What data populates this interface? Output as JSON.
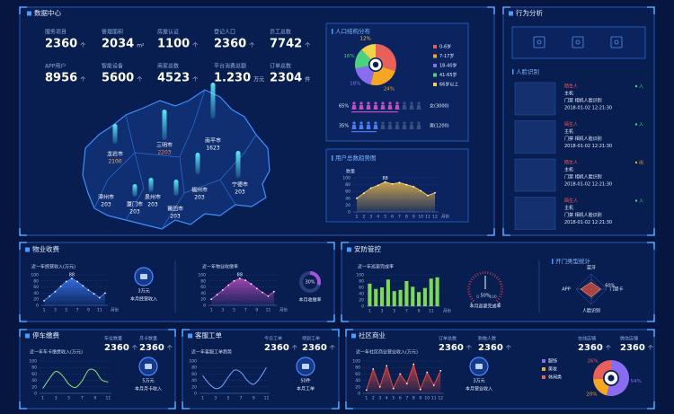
{
  "data_center": {
    "title": "数据中心",
    "stats": [
      {
        "label": "服务项目",
        "value": 2360,
        "unit": "个"
      },
      {
        "label": "管理面积",
        "value": 2034,
        "unit": "m²"
      },
      {
        "label": "房屋认证",
        "value": 1100,
        "unit": "个"
      },
      {
        "label": "登记人口",
        "value": 2360,
        "unit": "个"
      },
      {
        "label": "员工总数",
        "value": 7742,
        "unit": "个"
      },
      {
        "label": "APP用户",
        "value": 8956,
        "unit": "个"
      },
      {
        "label": "智能设备",
        "value": 5600,
        "unit": "个"
      },
      {
        "label": "商家总数",
        "value": 4523,
        "unit": "个"
      },
      {
        "label": "平台消费总额",
        "value": "1.230",
        "unit": "万元"
      },
      {
        "label": "订单总数",
        "value": 2304,
        "unit": "件"
      }
    ],
    "map": {
      "regions": [
        {
          "name": "龙岩市",
          "value": 2100,
          "color": "#ffb347"
        },
        {
          "name": "三明市",
          "value": 2203,
          "color": "#ff8a3d"
        },
        {
          "name": "南平市",
          "value": 1623,
          "color": "#ffffff"
        },
        {
          "name": "漳州市",
          "value": 203,
          "color": "#ffffff"
        },
        {
          "name": "厦门市",
          "value": 203,
          "color": "#ffffff"
        },
        {
          "name": "泉州市",
          "value": 203,
          "color": "#ffffff"
        },
        {
          "name": "莆田市",
          "value": 203,
          "color": "#ffffff"
        },
        {
          "name": "福州市",
          "value": 203,
          "color": "#ffffff"
        },
        {
          "name": "宁德市",
          "value": 203,
          "color": "#ffffff"
        }
      ]
    },
    "population": {
      "title": "人口结构分布",
      "chart_data": {
        "type": "pie",
        "categories": [
          "0-6岁",
          "7-17岁",
          "18-40岁",
          "41-65岁",
          "66岁以上"
        ],
        "values": [
          30,
          24,
          18,
          16,
          12
        ],
        "value_labels": [
          null,
          "24%",
          "18%",
          "16%",
          "12%"
        ],
        "colors": [
          "#e8605a",
          "#f5a623",
          "#8a6cf0",
          "#4cd27f",
          "#f2d14b"
        ]
      },
      "gender": [
        {
          "value": 65,
          "value_label": "65%",
          "label": "女(3000)",
          "color": "#c04fc4"
        },
        {
          "value": 35,
          "value_label": "35%",
          "label": "男(1200)",
          "color": "#4a7cf0"
        }
      ]
    },
    "users": {
      "title": "用户总数趋势图",
      "chart_data": {
        "type": "area",
        "y_label": "数量",
        "x_label": "月份",
        "categories": [
          "1",
          "2",
          "3",
          "4",
          "5",
          "6",
          "7",
          "8",
          "9",
          "10",
          "11",
          "12"
        ],
        "values": [
          40,
          55,
          70,
          78,
          88,
          82,
          86,
          80,
          74,
          62,
          48,
          56
        ],
        "value_labels": [
          null,
          null,
          null,
          null,
          "88",
          null,
          null,
          null,
          null,
          null,
          null,
          null
        ],
        "ylim": [
          0,
          100
        ],
        "yticks": [
          0,
          20,
          40,
          60,
          80,
          100
        ],
        "color": "#f5c04a"
      }
    }
  },
  "behavior": {
    "title": "行为分析",
    "face": {
      "title": "人脸识别",
      "records": [
        {
          "name": "陌生人",
          "device": "主机",
          "source": "门禁 相机人脸识别",
          "time": "2018-01-02 12:21:30",
          "direction": "入",
          "color": "#4cd27f"
        },
        {
          "name": "陌生人",
          "device": "主机",
          "source": "门禁 相机人脸识别",
          "time": "2018-01-02 12:21:30",
          "direction": "入",
          "color": "#4cd27f"
        },
        {
          "name": "陌生人",
          "device": "主机",
          "source": "门禁 相机人脸识别",
          "time": "2018-01-02 12:21:30",
          "direction": "出",
          "color": "#f5a623"
        },
        {
          "name": "陌生人",
          "device": "主机",
          "source": "门禁 相机人脸识别",
          "time": "2018-01-02 12:21:30",
          "direction": "入",
          "color": "#4cd27f"
        }
      ]
    }
  },
  "property": {
    "title": "物业收费",
    "income": {
      "chart_data": {
        "type": "area",
        "title": "近一年经营收入(万元)",
        "x_label": "月份",
        "categories": [
          "1",
          null,
          "3",
          null,
          "5",
          null,
          "7",
          null,
          "9",
          null,
          "11",
          null
        ],
        "values": [
          15,
          30,
          45,
          62,
          78,
          88,
          78,
          64,
          50,
          38,
          25,
          40
        ],
        "value_labels": [
          null,
          null,
          null,
          null,
          null,
          "88",
          null,
          null,
          null,
          null,
          null,
          null
        ],
        "ylim": [
          0,
          100
        ],
        "yticks": [
          0,
          20,
          40,
          60,
          80,
          100
        ],
        "color": "#3f7fff"
      },
      "kpi": {
        "value": "3万元",
        "label": "本月经营收入"
      }
    },
    "rate": {
      "chart_data": {
        "type": "area",
        "title": "近一年物业收缴率",
        "x_label": "月份",
        "categories": [
          "1",
          null,
          "3",
          null,
          "5",
          null,
          "7",
          null,
          "9",
          null,
          "11",
          null
        ],
        "values": [
          20,
          35,
          50,
          66,
          80,
          88,
          82,
          70,
          55,
          42,
          30,
          45
        ],
        "value_labels": [
          null,
          null,
          null,
          null,
          null,
          "88",
          null,
          null,
          null,
          null,
          null,
          null
        ],
        "ylim": [
          0,
          100
        ],
        "yticks": [
          0,
          20,
          40,
          60,
          80,
          100
        ],
        "color": "#c04fc4"
      },
      "kpi": {
        "value": 30,
        "value_label": "30%",
        "label": "本月收缴率",
        "color": "#a552e0"
      }
    }
  },
  "security": {
    "title": "安防管控",
    "patrol": {
      "chart_data": {
        "type": "bar",
        "title": "近一年巡更完成率",
        "x_label": "月份",
        "categories": [
          "1",
          null,
          "3",
          null,
          "5",
          null,
          "7",
          null,
          "9",
          null,
          "11",
          null
        ],
        "values": [
          72,
          55,
          60,
          85,
          48,
          52,
          80,
          62,
          45,
          58,
          88,
          92
        ],
        "ylim": [
          0,
          100
        ],
        "yticks": [
          0,
          20,
          40,
          60,
          80,
          100
        ],
        "color": "#7ed957"
      }
    },
    "gauge": {
      "value": 50,
      "value_label": "50%",
      "lim": [
        0,
        100
      ],
      "ticks": [
        0,
        100
      ],
      "label": "本月巡更完成率"
    },
    "door": {
      "title": "开门类型统计",
      "chart_data": {
        "type": "radar",
        "categories": [
          "蓝牙",
          "门禁卡",
          "人脸识别",
          "APP"
        ],
        "values": [
          45,
          60,
          50,
          70
        ],
        "value_labels": [
          null,
          "60%",
          null,
          null
        ],
        "rlim": [
          0,
          100
        ],
        "color": "#e8503a"
      }
    }
  },
  "parking": {
    "title": "停车缴费",
    "stats": [
      {
        "label": "车位数量",
        "value": 2360,
        "unit": "个"
      },
      {
        "label": "月卡数量",
        "value": 2360,
        "unit": "个"
      }
    ],
    "chart_data": {
      "type": "line",
      "title": "近一年车卡缴费收入(万元)",
      "categories": [
        "1",
        null,
        "3",
        null,
        "5",
        null,
        "7",
        null,
        "9",
        null,
        "11"
      ],
      "values": [
        15,
        45,
        68,
        55,
        28,
        18,
        38,
        72,
        70,
        42,
        35
      ],
      "ylim": [
        0,
        100
      ],
      "yticks": [
        0,
        20,
        40,
        60,
        80,
        100
      ],
      "color": "#8be07a"
    },
    "kpi": {
      "value": "5万元",
      "label": "本月月卡收入"
    }
  },
  "service": {
    "title": "客服工单",
    "stats": [
      {
        "label": "今日工单",
        "value": 2360,
        "unit": "个"
      },
      {
        "label": "待到工单",
        "value": 2360,
        "unit": "个"
      }
    ],
    "chart_data": {
      "type": "line",
      "title": "近一年客服工单趋势",
      "categories": [
        "1",
        null,
        "3",
        null,
        "5",
        null,
        "7",
        null,
        "9",
        null,
        "11"
      ],
      "values": [
        55,
        30,
        15,
        22,
        50,
        72,
        65,
        40,
        28,
        48,
        80
      ],
      "ylim": [
        0,
        100
      ],
      "yticks": [
        0,
        20,
        40,
        60,
        80,
        100
      ],
      "color": "#6fa8ff"
    },
    "kpi": {
      "value": "50件",
      "label": "本月工单"
    }
  },
  "commerce": {
    "title": "社区商业",
    "stats": [
      {
        "label": "订单总数",
        "value": 2360,
        "unit": "个"
      },
      {
        "label": "购物人数",
        "value": 2360,
        "unit": "个"
      },
      {
        "label": "在线店铺",
        "value": 2360,
        "unit": "个"
      },
      {
        "label": "微信店铺",
        "value": 2360,
        "unit": "个"
      }
    ],
    "chart_data": {
      "type": "area",
      "title": "近一年社区商业营业收入(万元)",
      "categories": [
        "1",
        "2",
        "3",
        "4",
        "5",
        "6",
        "7",
        "8",
        "9",
        "10",
        "11",
        "12"
      ],
      "values": [
        10,
        75,
        20,
        85,
        15,
        60,
        30,
        90,
        12,
        65,
        25,
        70
      ],
      "ylim": [
        0,
        100
      ],
      "yticks": [
        0,
        20,
        40,
        60,
        80,
        100
      ],
      "color": "#e0483f"
    },
    "kpi": {
      "value": "3万元",
      "label": "本月营业收入"
    },
    "share": {
      "chart_data": {
        "type": "pie",
        "categories": [
          "服饰",
          "美妆",
          "休闲类"
        ],
        "values": [
          54,
          20,
          26
        ],
        "value_labels": [
          "54%",
          "20%",
          "26%"
        ],
        "colors": [
          "#8a6cf0",
          "#f5a623",
          "#e8605a"
        ]
      }
    }
  }
}
